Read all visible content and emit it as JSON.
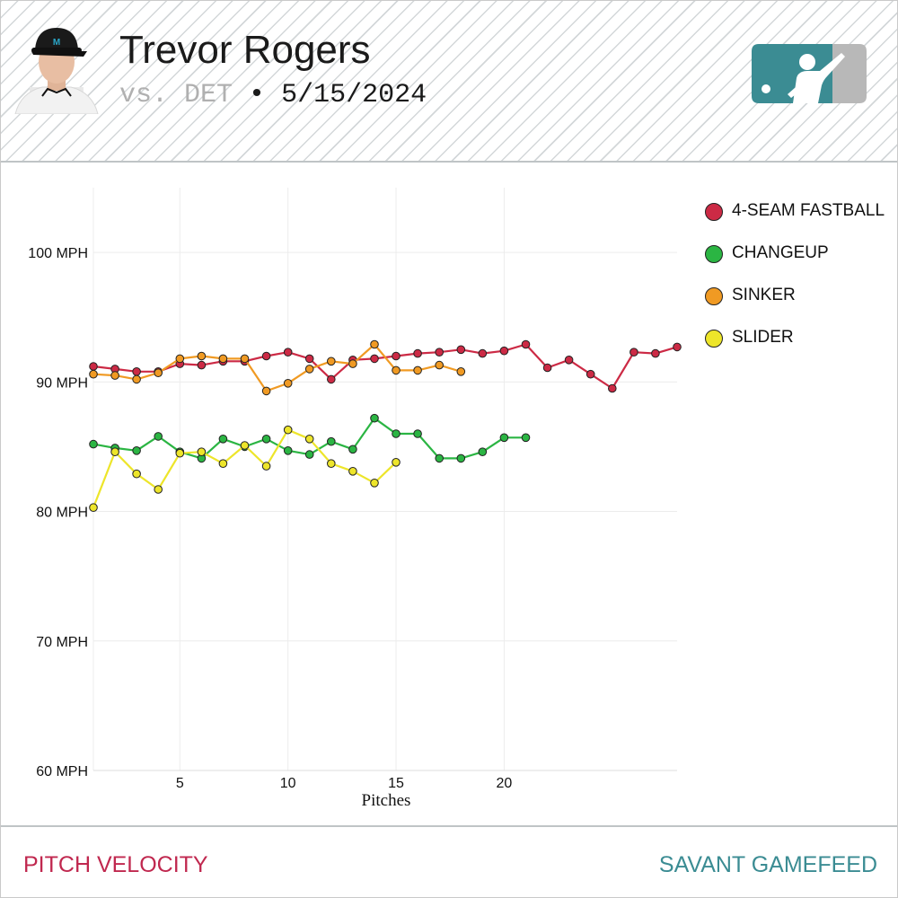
{
  "header": {
    "player_name": "Trevor Rogers",
    "opponent": "vs. DET",
    "separator": "•",
    "date": "5/15/2024",
    "headshot_icon": "player-headshot-icon",
    "logo_icon": "mlb-logo-icon"
  },
  "footer": {
    "left_label": "PITCH VELOCITY",
    "right_label": "SAVANT GAMEFEED"
  },
  "colors": {
    "stripe": "#d3d7d9",
    "footer_left": "#c0284f",
    "footer_right": "#3b8c93",
    "logo_left": "#3b8c93",
    "logo_right": "#b8b8b8"
  },
  "chart_data": {
    "type": "line",
    "xlabel": "Pitches",
    "ylabel": "",
    "xlim": [
      1,
      28
    ],
    "ylim": [
      60,
      105
    ],
    "x_ticks": [
      5,
      10,
      15,
      20
    ],
    "y_ticks": [
      60,
      70,
      80,
      90,
      100
    ],
    "y_tick_labels": [
      "60 MPH",
      "70 MPH",
      "80 MPH",
      "90 MPH",
      "100 MPH"
    ],
    "grid": true,
    "legend_position": "right",
    "series": [
      {
        "name": "4-SEAM FASTBALL",
        "color": "#cc2a45",
        "values": [
          91.2,
          91.0,
          90.8,
          90.8,
          91.4,
          91.3,
          91.6,
          91.6,
          92.0,
          92.3,
          91.8,
          90.2,
          91.7,
          91.8,
          92.0,
          92.2,
          92.3,
          92.5,
          92.2,
          92.4,
          92.9,
          91.1,
          91.7,
          90.6,
          89.5,
          92.3,
          92.2,
          92.7
        ]
      },
      {
        "name": "CHANGEUP",
        "color": "#2bb543",
        "values": [
          85.2,
          84.9,
          84.7,
          85.8,
          84.6,
          84.1,
          85.6,
          85.0,
          85.6,
          84.7,
          84.4,
          85.4,
          84.8,
          87.2,
          86.0,
          86.0,
          84.1,
          84.1,
          84.6,
          85.7,
          85.7
        ]
      },
      {
        "name": "SINKER",
        "color": "#f09a23",
        "values": [
          90.6,
          90.5,
          90.2,
          90.7,
          91.8,
          92.0,
          91.8,
          91.8,
          89.3,
          89.9,
          91.0,
          91.6,
          91.4,
          92.9,
          90.9,
          90.9,
          91.3,
          90.8
        ]
      },
      {
        "name": "SLIDER",
        "color": "#ede52a",
        "values": [
          80.3,
          84.6,
          82.9,
          81.7,
          84.5,
          84.6,
          83.7,
          85.1,
          83.5,
          86.3,
          85.6,
          83.7,
          83.1,
          82.2,
          83.8
        ]
      }
    ]
  }
}
